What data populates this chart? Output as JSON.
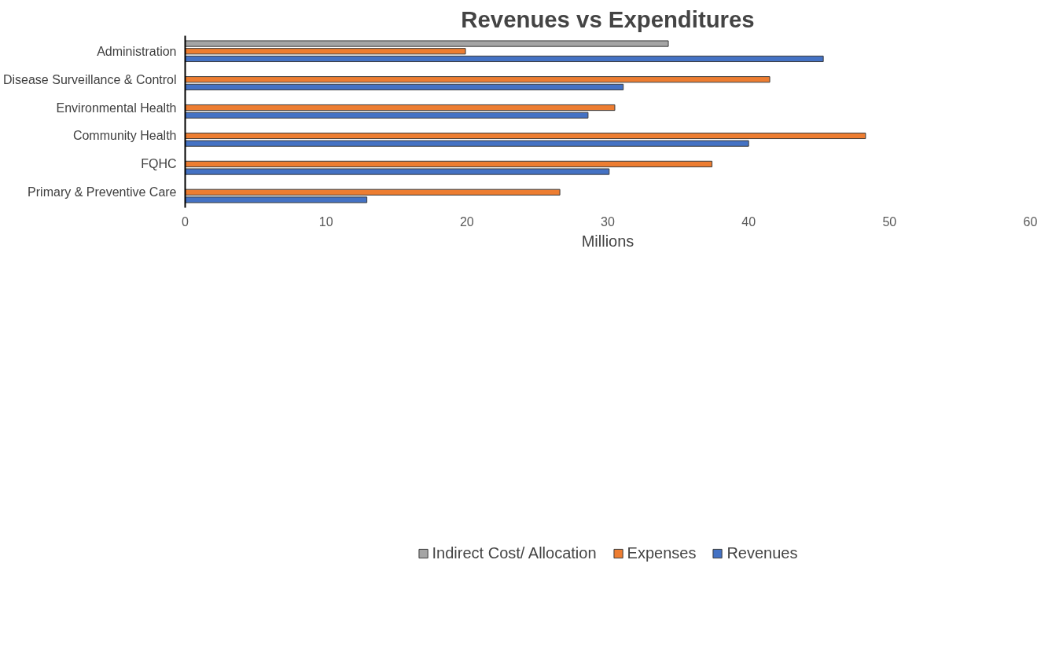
{
  "chart_data": {
    "type": "bar",
    "orientation": "horizontal",
    "title": "Revenues vs Expenditures",
    "xlabel": "Millions",
    "categories": [
      "Administration",
      "Disease Surveillance & Control",
      "Environmental Health",
      "Community Health",
      "FQHC",
      "Primary & Preventive Care"
    ],
    "series": [
      {
        "name": "Indirect Cost/ Allocation",
        "color": "#a5a5a5",
        "values": [
          34.3,
          null,
          null,
          null,
          null,
          null
        ]
      },
      {
        "name": "Expenses",
        "color": "#ed7d31",
        "values": [
          19.9,
          41.5,
          30.5,
          48.3,
          37.4,
          26.6
        ]
      },
      {
        "name": "Revenues",
        "color": "#4472c4",
        "values": [
          45.3,
          31.1,
          28.6,
          40.0,
          30.1,
          12.9
        ]
      }
    ],
    "xlim": [
      0,
      60
    ],
    "xticks": [
      0,
      10,
      20,
      30,
      40,
      50,
      60
    ],
    "grid": false,
    "legend": "bottom"
  }
}
